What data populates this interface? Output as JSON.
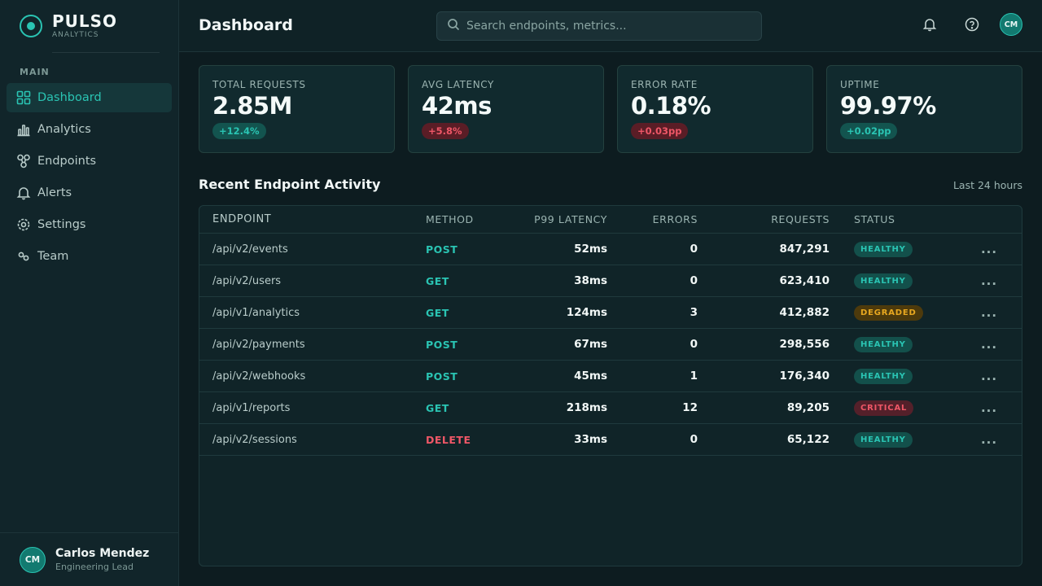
{
  "brand": {
    "name": "PULSO",
    "sub": "ANALYTICS"
  },
  "nav": {
    "section": "MAIN",
    "items": [
      {
        "label": "Dashboard",
        "icon": "grid-icon",
        "active": true
      },
      {
        "label": "Analytics",
        "icon": "bar-chart-icon"
      },
      {
        "label": "Endpoints",
        "icon": "nodes-icon"
      },
      {
        "label": "Alerts",
        "icon": "bell-icon"
      },
      {
        "label": "Settings",
        "icon": "gear-icon"
      },
      {
        "label": "Team",
        "icon": "link-icon"
      }
    ]
  },
  "user": {
    "initials": "CM",
    "name": "Carlos Mendez",
    "role": "Engineering Lead"
  },
  "header": {
    "title": "Dashboard",
    "search_placeholder": "Search endpoints, metrics...",
    "avatar_initials": "CM"
  },
  "stats": [
    {
      "label": "TOTAL REQUESTS",
      "value": "2.85M",
      "delta": "+12.4%",
      "trend": "up"
    },
    {
      "label": "AVG LATENCY",
      "value": "42ms",
      "delta": "+5.8%",
      "trend": "down"
    },
    {
      "label": "ERROR RATE",
      "value": "0.18%",
      "delta": "+0.03pp",
      "trend": "down"
    },
    {
      "label": "UPTIME",
      "value": "99.97%",
      "delta": "+0.02pp",
      "trend": "up"
    }
  ],
  "activity": {
    "title": "Recent Endpoint Activity",
    "range": "Last 24 hours",
    "columns": [
      "ENDPOINT",
      "METHOD",
      "P99 LATENCY",
      "ERRORS",
      "REQUESTS",
      "STATUS"
    ],
    "rows": [
      {
        "endpoint": "/api/v2/events",
        "method": "POST",
        "latency": "52ms",
        "errors": "0",
        "requests": "847,291",
        "status": "HEALTHY"
      },
      {
        "endpoint": "/api/v2/users",
        "method": "GET",
        "latency": "38ms",
        "errors": "0",
        "requests": "623,410",
        "status": "HEALTHY"
      },
      {
        "endpoint": "/api/v1/analytics",
        "method": "GET",
        "latency": "124ms",
        "errors": "3",
        "requests": "412,882",
        "status": "DEGRADED"
      },
      {
        "endpoint": "/api/v2/payments",
        "method": "POST",
        "latency": "67ms",
        "errors": "0",
        "requests": "298,556",
        "status": "HEALTHY"
      },
      {
        "endpoint": "/api/v2/webhooks",
        "method": "POST",
        "latency": "45ms",
        "errors": "1",
        "requests": "176,340",
        "status": "HEALTHY"
      },
      {
        "endpoint": "/api/v1/reports",
        "method": "GET",
        "latency": "218ms",
        "errors": "12",
        "requests": "89,205",
        "status": "CRITICAL"
      },
      {
        "endpoint": "/api/v2/sessions",
        "method": "DELETE",
        "latency": "33ms",
        "errors": "0",
        "requests": "65,122",
        "status": "HEALTHY"
      }
    ],
    "more_label": "..."
  },
  "colors": {
    "accent": "#2ac4b3",
    "danger": "#ef5767",
    "warning": "#e8a820",
    "background": "#0d1c20"
  }
}
